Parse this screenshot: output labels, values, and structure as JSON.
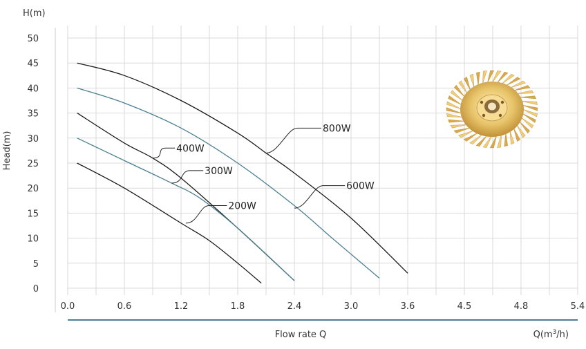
{
  "chart_data": {
    "type": "line",
    "title": "",
    "ylabel": "Head(m)",
    "ylabel_unit_top": "H(m)",
    "xlabel": "Flow rate Q",
    "xlabel_unit": "Q(m³/h)",
    "x_ticks": [
      "0.0",
      "0.6",
      "1.2",
      "1.8",
      "2.4",
      "3.0",
      "3.6",
      "4.5",
      "4.8",
      "5.4"
    ],
    "y_ticks": [
      "0",
      "5",
      "10",
      "15",
      "20",
      "25",
      "30",
      "35",
      "40",
      "45",
      "50"
    ],
    "ylim": [
      0,
      50
    ],
    "grid": true,
    "series": [
      {
        "name": "800W",
        "color": "#1a1a1a",
        "x": [
          0.1,
          0.6,
          1.2,
          1.8,
          2.1,
          2.4,
          3.0,
          3.6
        ],
        "y": [
          45,
          42.5,
          37.5,
          31,
          27,
          23,
          14,
          3
        ]
      },
      {
        "name": "600W",
        "color": "#4a7f91",
        "x": [
          0.1,
          0.6,
          1.2,
          1.8,
          2.4,
          2.8,
          3.3
        ],
        "y": [
          40,
          37,
          32,
          25,
          16.5,
          10,
          2
        ]
      },
      {
        "name": "400W",
        "color": "#1a1a1a",
        "x": [
          0.1,
          0.6,
          0.9,
          1.2,
          1.8,
          2.4
        ],
        "y": [
          35,
          29,
          26,
          22,
          12,
          1.5
        ]
      },
      {
        "name": "300W",
        "color": "#4a7f91",
        "x": [
          0.1,
          0.6,
          1.1,
          1.4,
          1.8,
          2.4
        ],
        "y": [
          30,
          25.5,
          21,
          18,
          12,
          1.5
        ]
      },
      {
        "name": "200W",
        "color": "#1a1a1a",
        "x": [
          0.1,
          0.6,
          1.2,
          1.5,
          1.8,
          2.05
        ],
        "y": [
          25,
          20,
          13,
          9.5,
          5,
          1
        ]
      }
    ],
    "callouts": [
      {
        "label": "800W",
        "anchor_x": 2.1,
        "anchor_y": 27,
        "label_x": 2.7,
        "label_y": 32
      },
      {
        "label": "600W",
        "anchor_x": 2.4,
        "anchor_y": 16,
        "label_x": 2.95,
        "label_y": 20.5
      },
      {
        "label": "400W",
        "anchor_x": 0.9,
        "anchor_y": 26,
        "label_x": 1.15,
        "label_y": 28
      },
      {
        "label": "300W",
        "anchor_x": 1.1,
        "anchor_y": 21,
        "label_x": 1.45,
        "label_y": 23.5
      },
      {
        "label": "200W",
        "anchor_x": 1.25,
        "anchor_y": 13,
        "label_x": 1.7,
        "label_y": 16.5
      }
    ]
  }
}
